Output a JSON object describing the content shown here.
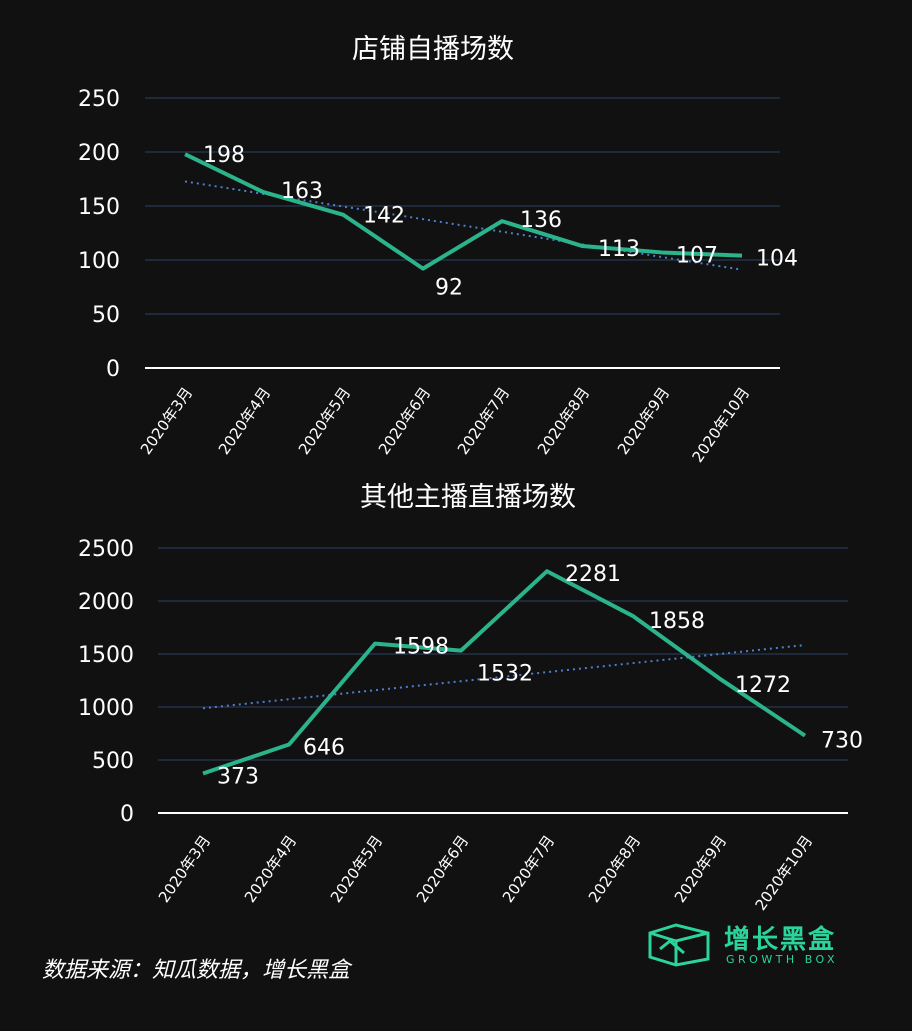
{
  "charts": {
    "c1": {
      "title": "店铺自播场数",
      "yticks": [
        "250",
        "200",
        "150",
        "100",
        "50",
        "0"
      ]
    },
    "c2": {
      "title": "其他主播直播场数",
      "yticks": [
        "2500",
        "2000",
        "1500",
        "1000",
        "500",
        "0"
      ]
    }
  },
  "chart_data": [
    {
      "type": "line",
      "title": "店铺自播场数",
      "categories": [
        "2020年3月",
        "2020年4月",
        "2020年5月",
        "2020年6月",
        "2020年7月",
        "2020年8月",
        "2020年9月",
        "2020年10月"
      ],
      "values": [
        198,
        163,
        142,
        92,
        136,
        113,
        107,
        104
      ],
      "trendline": "linear",
      "ylim": [
        0,
        250
      ],
      "grid": true,
      "colors": {
        "series": "#2bb38b",
        "trend": "#4b7fd1",
        "grid": "#22324a"
      }
    },
    {
      "type": "line",
      "title": "其他主播直播场数",
      "categories": [
        "2020年3月",
        "2020年4月",
        "2020年5月",
        "2020年6月",
        "2020年7月",
        "2020年8月",
        "2020年9月",
        "2020年10月"
      ],
      "values": [
        373,
        646,
        1598,
        1532,
        2281,
        1858,
        1272,
        730
      ],
      "trendline": "linear",
      "ylim": [
        0,
        2500
      ],
      "grid": true,
      "colors": {
        "series": "#2bb38b",
        "trend": "#4b7fd1",
        "grid": "#22324a"
      }
    }
  ],
  "footer": {
    "source": "数据来源：知瓜数据，增长黑盒"
  },
  "brand": {
    "name": "增长黑盒",
    "sub": "GROWTH BOX",
    "color": "#2bd49a"
  }
}
